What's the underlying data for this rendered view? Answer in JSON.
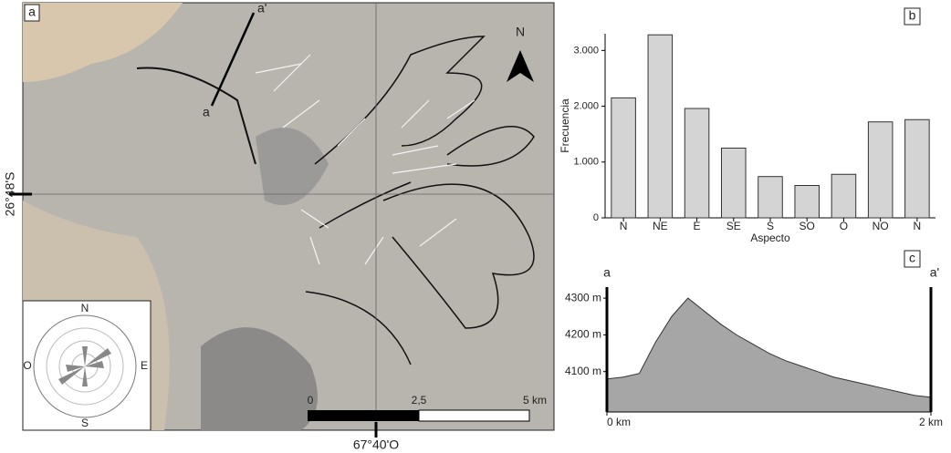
{
  "map": {
    "panel_label": "a",
    "north": "N",
    "profile_start": "a",
    "profile_end": "a'",
    "latitude_label": "26°48'S",
    "longitude_label": "67°40'O",
    "scale_labels": [
      "0",
      "2,5",
      "5 km"
    ],
    "rose_labels": {
      "north": "N",
      "south": "S",
      "east": "E",
      "west": "O"
    }
  },
  "chart_data": [
    {
      "type": "bar",
      "panel_label": "b",
      "x_label": "Aspecto",
      "y_label": "Frecuencia",
      "categories": [
        "N",
        "NE",
        "E",
        "SE",
        "S",
        "SO",
        "O",
        "NO",
        "N"
      ],
      "values": [
        2150,
        3280,
        1960,
        1250,
        740,
        580,
        780,
        1720,
        1760
      ],
      "color": "#d4d4d4",
      "ylim": [
        0,
        3300
      ],
      "yticks": [
        0,
        {
          "value": 1000,
          "label": "1.000"
        },
        {
          "value": 2000,
          "label": "2.000"
        },
        {
          "value": 3000,
          "label": "3.000"
        }
      ]
    },
    {
      "type": "area",
      "panel_label": "c",
      "start_label": "a",
      "end_label": "a'",
      "x": [
        0,
        0.1,
        0.2,
        0.3,
        0.4,
        0.5,
        0.6,
        0.7,
        0.8,
        0.9,
        1.0,
        1.1,
        1.2,
        1.3,
        1.4,
        1.5,
        1.6,
        1.7,
        1.8,
        1.9,
        2.0
      ],
      "values": [
        4080,
        4085,
        4095,
        4180,
        4250,
        4300,
        4265,
        4230,
        4200,
        4175,
        4150,
        4130,
        4115,
        4100,
        4085,
        4075,
        4065,
        4055,
        4045,
        4035,
        4030
      ],
      "color": "#a6a6a6",
      "xlim": [
        0,
        2
      ],
      "ylim": [
        3990,
        4330
      ],
      "xticks": [
        {
          "value": 0,
          "label": "0 km"
        },
        {
          "value": 2,
          "label": "2 km"
        }
      ],
      "yticks": [
        {
          "value": 4100,
          "label": "4100 m"
        },
        {
          "value": 4200,
          "label": "4200 m"
        },
        {
          "value": 4300,
          "label": "4300 m"
        }
      ]
    }
  ]
}
